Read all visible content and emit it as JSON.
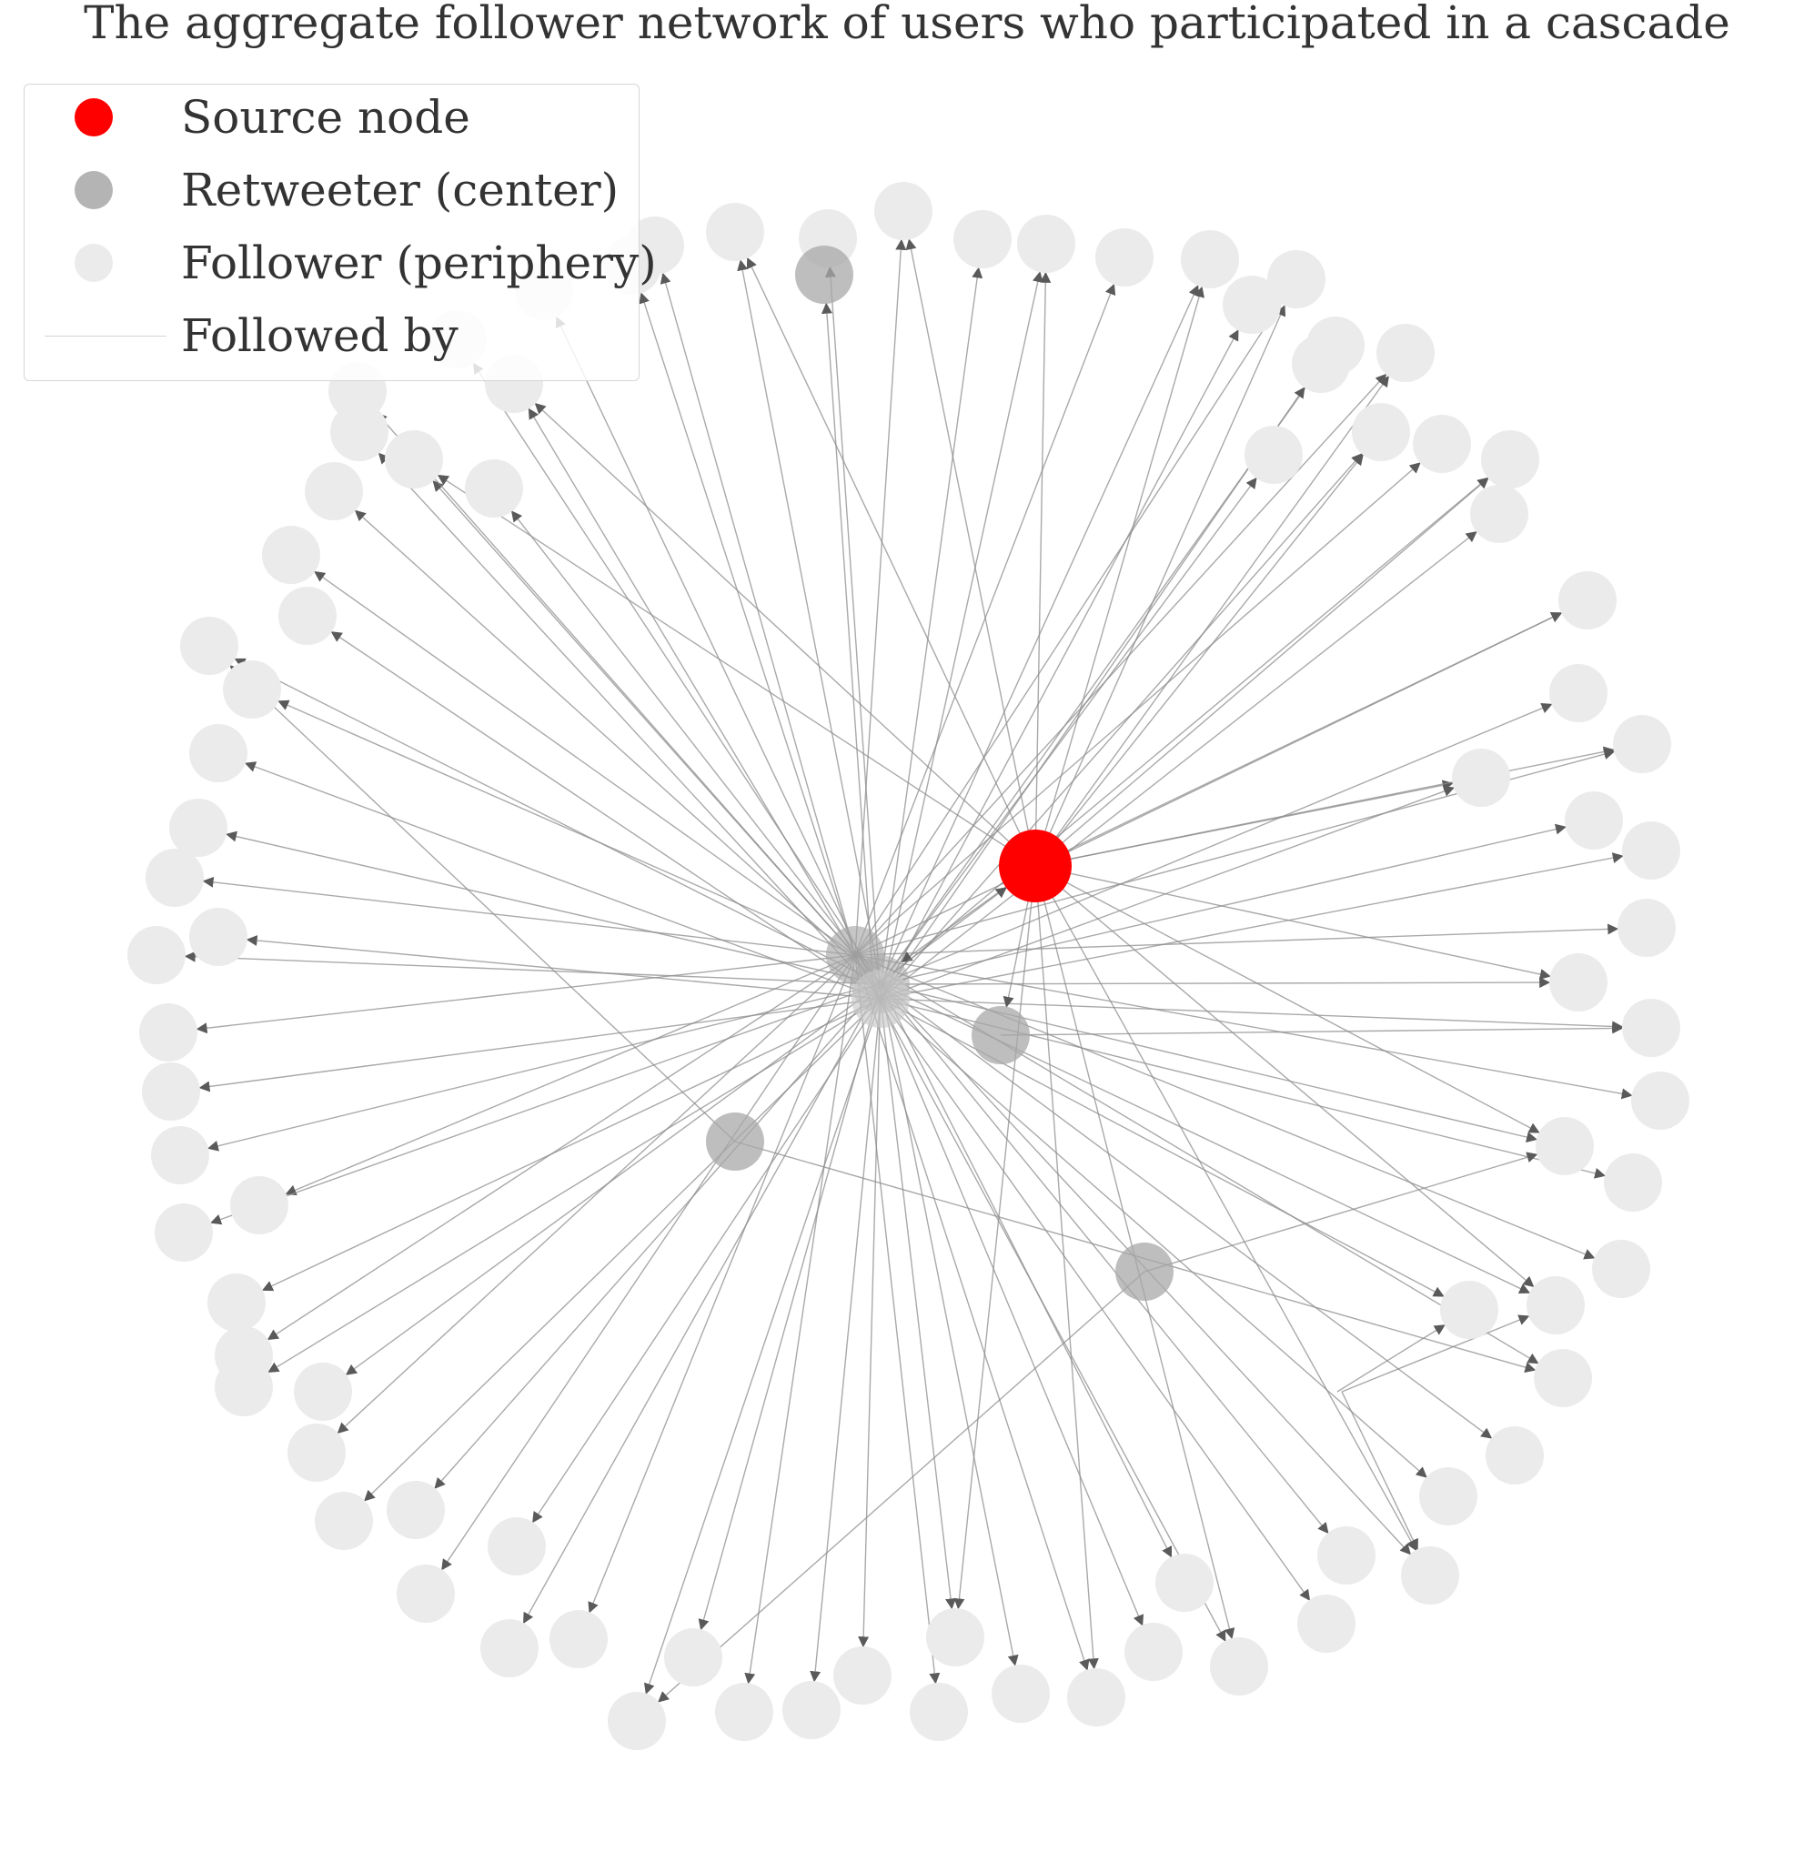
{
  "title": "The aggregate follower network of users who participated in a cascade",
  "legend": {
    "items": [
      {
        "label": "Source node",
        "kind": "source"
      },
      {
        "label": "Retweeter (center)",
        "kind": "retweeter"
      },
      {
        "label": "Follower (periphery)",
        "kind": "follower"
      },
      {
        "label": "Followed by",
        "kind": "edge"
      }
    ]
  },
  "colors": {
    "source": "#ff0000",
    "retweeter": "#a8a8a8",
    "follower": "#ebebeb",
    "edge": "#8c8c8c",
    "legend_edge": "#d4d4d4"
  }
}
